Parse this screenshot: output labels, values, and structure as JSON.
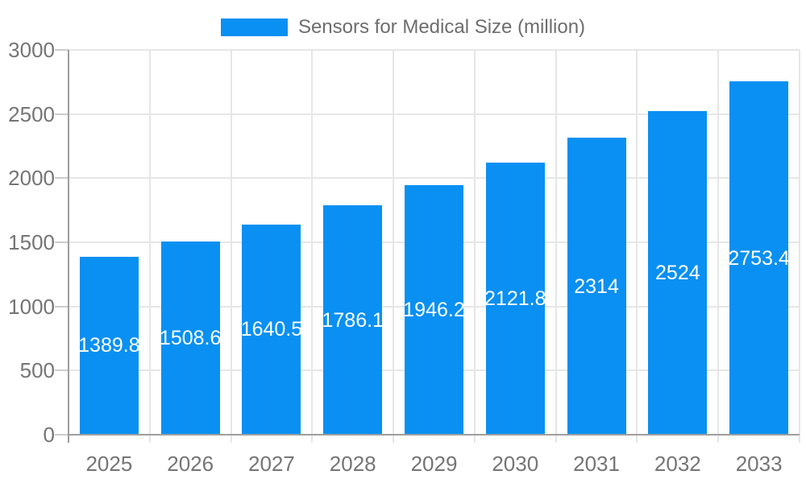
{
  "chart_data": {
    "type": "bar",
    "title": "Sensors for Medical Size (million)",
    "legend": {
      "label": "Sensors for Medical Size (million)",
      "position": "top-center"
    },
    "categories": [
      "2025",
      "2026",
      "2027",
      "2028",
      "2029",
      "2030",
      "2031",
      "2032",
      "2033"
    ],
    "values": [
      1389.8,
      1508.6,
      1640.5,
      1786.1,
      1946.2,
      2121.8,
      2314,
      2524,
      2753.4
    ],
    "yticks": [
      0,
      500,
      1000,
      1500,
      2000,
      2500,
      3000
    ],
    "ylim": [
      0,
      3000
    ],
    "xlabel": "",
    "ylabel": "",
    "grid": true,
    "value_labels": "inside-center",
    "colors": {
      "bar": "#0990f2",
      "grid_line": "#e6e6e6",
      "axis_line": "#9e9e9e",
      "tick_dash": "#cccccc",
      "axis_text": "#757575",
      "value_label_text": "#ffffff",
      "legend_text": "#6d6d6d",
      "background": "#ffffff"
    }
  }
}
